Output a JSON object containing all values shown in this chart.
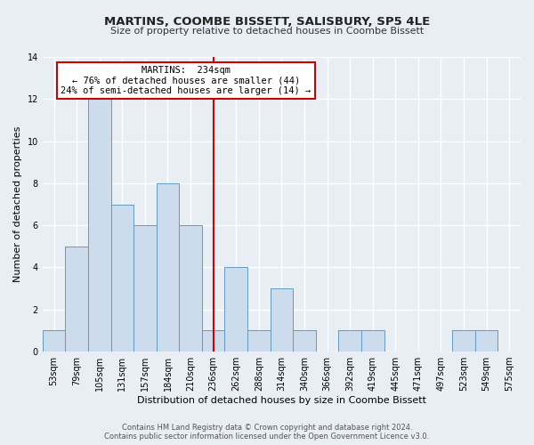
{
  "title": "MARTINS, COOMBE BISSETT, SALISBURY, SP5 4LE",
  "subtitle": "Size of property relative to detached houses in Coombe Bissett",
  "xlabel": "Distribution of detached houses by size in Coombe Bissett",
  "ylabel": "Number of detached properties",
  "bin_labels": [
    "53sqm",
    "79sqm",
    "105sqm",
    "131sqm",
    "157sqm",
    "184sqm",
    "210sqm",
    "236sqm",
    "262sqm",
    "288sqm",
    "314sqm",
    "340sqm",
    "366sqm",
    "392sqm",
    "419sqm",
    "445sqm",
    "471sqm",
    "497sqm",
    "523sqm",
    "549sqm",
    "575sqm"
  ],
  "bar_values": [
    1,
    5,
    12,
    7,
    6,
    8,
    6,
    1,
    4,
    1,
    3,
    1,
    0,
    1,
    1,
    0,
    0,
    0,
    1,
    1,
    0
  ],
  "bar_color": "#ccdcec",
  "bar_edge_color": "#6699bb",
  "vline_x_idx": 7,
  "vline_color": "#cc0000",
  "annotation_title": "MARTINS:  234sqm",
  "annotation_line1": "← 76% of detached houses are smaller (44)",
  "annotation_line2": "24% of semi-detached houses are larger (14) →",
  "annotation_box_color": "#ffffff",
  "annotation_box_edge": "#cc0000",
  "ylim": [
    0,
    14
  ],
  "yticks": [
    0,
    2,
    4,
    6,
    8,
    10,
    12,
    14
  ],
  "footer_line1": "Contains HM Land Registry data © Crown copyright and database right 2024.",
  "footer_line2": "Contains public sector information licensed under the Open Government Licence v3.0.",
  "background_color": "#e8eef4",
  "plot_bg_color": "#e8eef4",
  "grid_color": "#ffffff",
  "title_fontsize": 9.5,
  "subtitle_fontsize": 8,
  "axis_label_fontsize": 8,
  "tick_fontsize": 7,
  "footer_fontsize": 6
}
